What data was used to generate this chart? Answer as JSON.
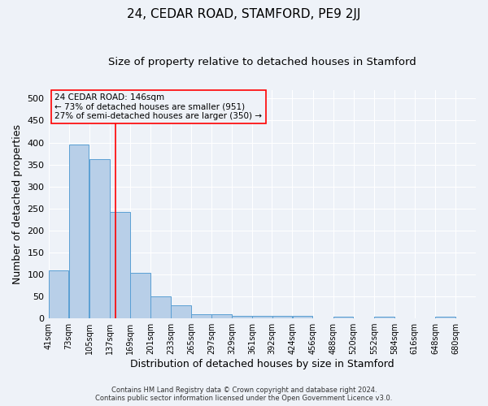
{
  "title": "24, CEDAR ROAD, STAMFORD, PE9 2JJ",
  "subtitle": "Size of property relative to detached houses in Stamford",
  "xlabel": "Distribution of detached houses by size in Stamford",
  "ylabel": "Number of detached properties",
  "bar_values": [
    110,
    395,
    363,
    243,
    103,
    50,
    30,
    10,
    10,
    6,
    6,
    6,
    6,
    0,
    3,
    0,
    3,
    0,
    0,
    3
  ],
  "bin_left_edges": [
    41,
    73,
    105,
    137,
    169,
    201,
    233,
    265,
    297,
    329,
    361,
    392,
    424,
    456,
    488,
    520,
    552,
    584,
    616,
    648
  ],
  "bin_width": 32,
  "x_tick_labels": [
    "41sqm",
    "73sqm",
    "105sqm",
    "137sqm",
    "169sqm",
    "201sqm",
    "233sqm",
    "265sqm",
    "297sqm",
    "329sqm",
    "361sqm",
    "392sqm",
    "424sqm",
    "456sqm",
    "488sqm",
    "520sqm",
    "552sqm",
    "584sqm",
    "616sqm",
    "648sqm",
    "680sqm"
  ],
  "x_tick_positions": [
    41,
    73,
    105,
    137,
    169,
    201,
    233,
    265,
    297,
    329,
    361,
    392,
    424,
    456,
    488,
    520,
    552,
    584,
    616,
    648,
    680
  ],
  "xlim_left": 41,
  "xlim_right": 712,
  "ylim": [
    0,
    520
  ],
  "yticks": [
    0,
    50,
    100,
    150,
    200,
    250,
    300,
    350,
    400,
    450,
    500
  ],
  "bar_color": "#b8cfe8",
  "bar_edge_color": "#5a9fd4",
  "bar_edge_width": 0.7,
  "red_line_x": 146,
  "annotation_text_line1": "24 CEDAR ROAD: 146sqm",
  "annotation_text_line2": "← 73% of detached houses are smaller (951)",
  "annotation_text_line3": "27% of semi-detached houses are larger (350) →",
  "footer_line1": "Contains HM Land Registry data © Crown copyright and database right 2024.",
  "footer_line2": "Contains public sector information licensed under the Open Government Licence v3.0.",
  "background_color": "#eef2f8",
  "grid_color": "#ffffff",
  "title_fontsize": 11,
  "subtitle_fontsize": 9.5,
  "ylabel_fontsize": 9,
  "xlabel_fontsize": 9,
  "tick_fontsize": 7,
  "annotation_fontsize": 7.5,
  "footer_fontsize": 6
}
